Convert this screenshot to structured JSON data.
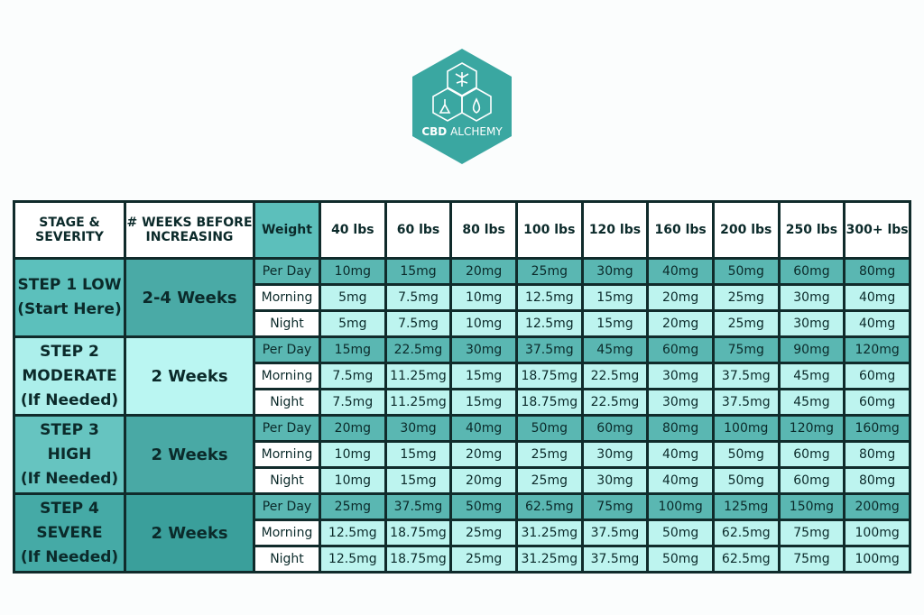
{
  "logo": {
    "bold": "CBD",
    "light": "ALCHEMY"
  },
  "table": {
    "headers": [
      [
        "STAGE &",
        "SEVERITY"
      ],
      [
        "# WEEKS BEFORE",
        "INCREASING"
      ],
      [
        "Weight"
      ],
      [
        "40 lbs"
      ],
      [
        "60 lbs"
      ],
      [
        "80 lbs"
      ],
      [
        "100 lbs"
      ],
      [
        "120 lbs"
      ],
      [
        "160 lbs"
      ],
      [
        "200 lbs"
      ],
      [
        "250 lbs"
      ],
      [
        "300+ lbs"
      ]
    ],
    "steps": [
      {
        "stage": [
          "STEP 1 LOW",
          "(Start Here)"
        ],
        "weeks": "2-4 Weeks",
        "rows": [
          {
            "label": "Per Day",
            "doses": [
              "10mg",
              "15mg",
              "20mg",
              "25mg",
              "30mg",
              "40mg",
              "50mg",
              "60mg",
              "80mg"
            ]
          },
          {
            "label": "Morning",
            "doses": [
              "5mg",
              "7.5mg",
              "10mg",
              "12.5mg",
              "15mg",
              "20mg",
              "25mg",
              "30mg",
              "40mg"
            ]
          },
          {
            "label": "Night",
            "doses": [
              "5mg",
              "7.5mg",
              "10mg",
              "12.5mg",
              "15mg",
              "20mg",
              "25mg",
              "30mg",
              "40mg"
            ]
          }
        ]
      },
      {
        "stage": [
          "STEP 2",
          "MODERATE",
          "(If Needed)"
        ],
        "weeks": "2 Weeks",
        "rows": [
          {
            "label": "Per Day",
            "doses": [
              "15mg",
              "22.5mg",
              "30mg",
              "37.5mg",
              "45mg",
              "60mg",
              "75mg",
              "90mg",
              "120mg"
            ]
          },
          {
            "label": "Morning",
            "doses": [
              "7.5mg",
              "11.25mg",
              "15mg",
              "18.75mg",
              "22.5mg",
              "30mg",
              "37.5mg",
              "45mg",
              "60mg"
            ]
          },
          {
            "label": "Night",
            "doses": [
              "7.5mg",
              "11.25mg",
              "15mg",
              "18.75mg",
              "22.5mg",
              "30mg",
              "37.5mg",
              "45mg",
              "60mg"
            ]
          }
        ]
      },
      {
        "stage": [
          "STEP 3 HIGH",
          "(If Needed)"
        ],
        "weeks": "2 Weeks",
        "rows": [
          {
            "label": "Per Day",
            "doses": [
              "20mg",
              "30mg",
              "40mg",
              "50mg",
              "60mg",
              "80mg",
              "100mg",
              "120mg",
              "160mg"
            ]
          },
          {
            "label": "Morning",
            "doses": [
              "10mg",
              "15mg",
              "20mg",
              "25mg",
              "30mg",
              "40mg",
              "50mg",
              "60mg",
              "80mg"
            ]
          },
          {
            "label": "Night",
            "doses": [
              "10mg",
              "15mg",
              "20mg",
              "25mg",
              "30mg",
              "40mg",
              "50mg",
              "60mg",
              "80mg"
            ]
          }
        ]
      },
      {
        "stage": [
          "STEP 4",
          "SEVERE",
          "(If Needed)"
        ],
        "weeks": "2 Weeks",
        "rows": [
          {
            "label": "Per Day",
            "doses": [
              "25mg",
              "37.5mg",
              "50mg",
              "62.5mg",
              "75mg",
              "100mg",
              "125mg",
              "150mg",
              "200mg"
            ]
          },
          {
            "label": "Morning",
            "doses": [
              "12.5mg",
              "18.75mg",
              "25mg",
              "31.25mg",
              "37.5mg",
              "50mg",
              "62.5mg",
              "75mg",
              "100mg"
            ]
          },
          {
            "label": "Night",
            "doses": [
              "12.5mg",
              "18.75mg",
              "25mg",
              "31.25mg",
              "37.5mg",
              "50mg",
              "62.5mg",
              "75mg",
              "100mg"
            ]
          }
        ]
      }
    ]
  }
}
